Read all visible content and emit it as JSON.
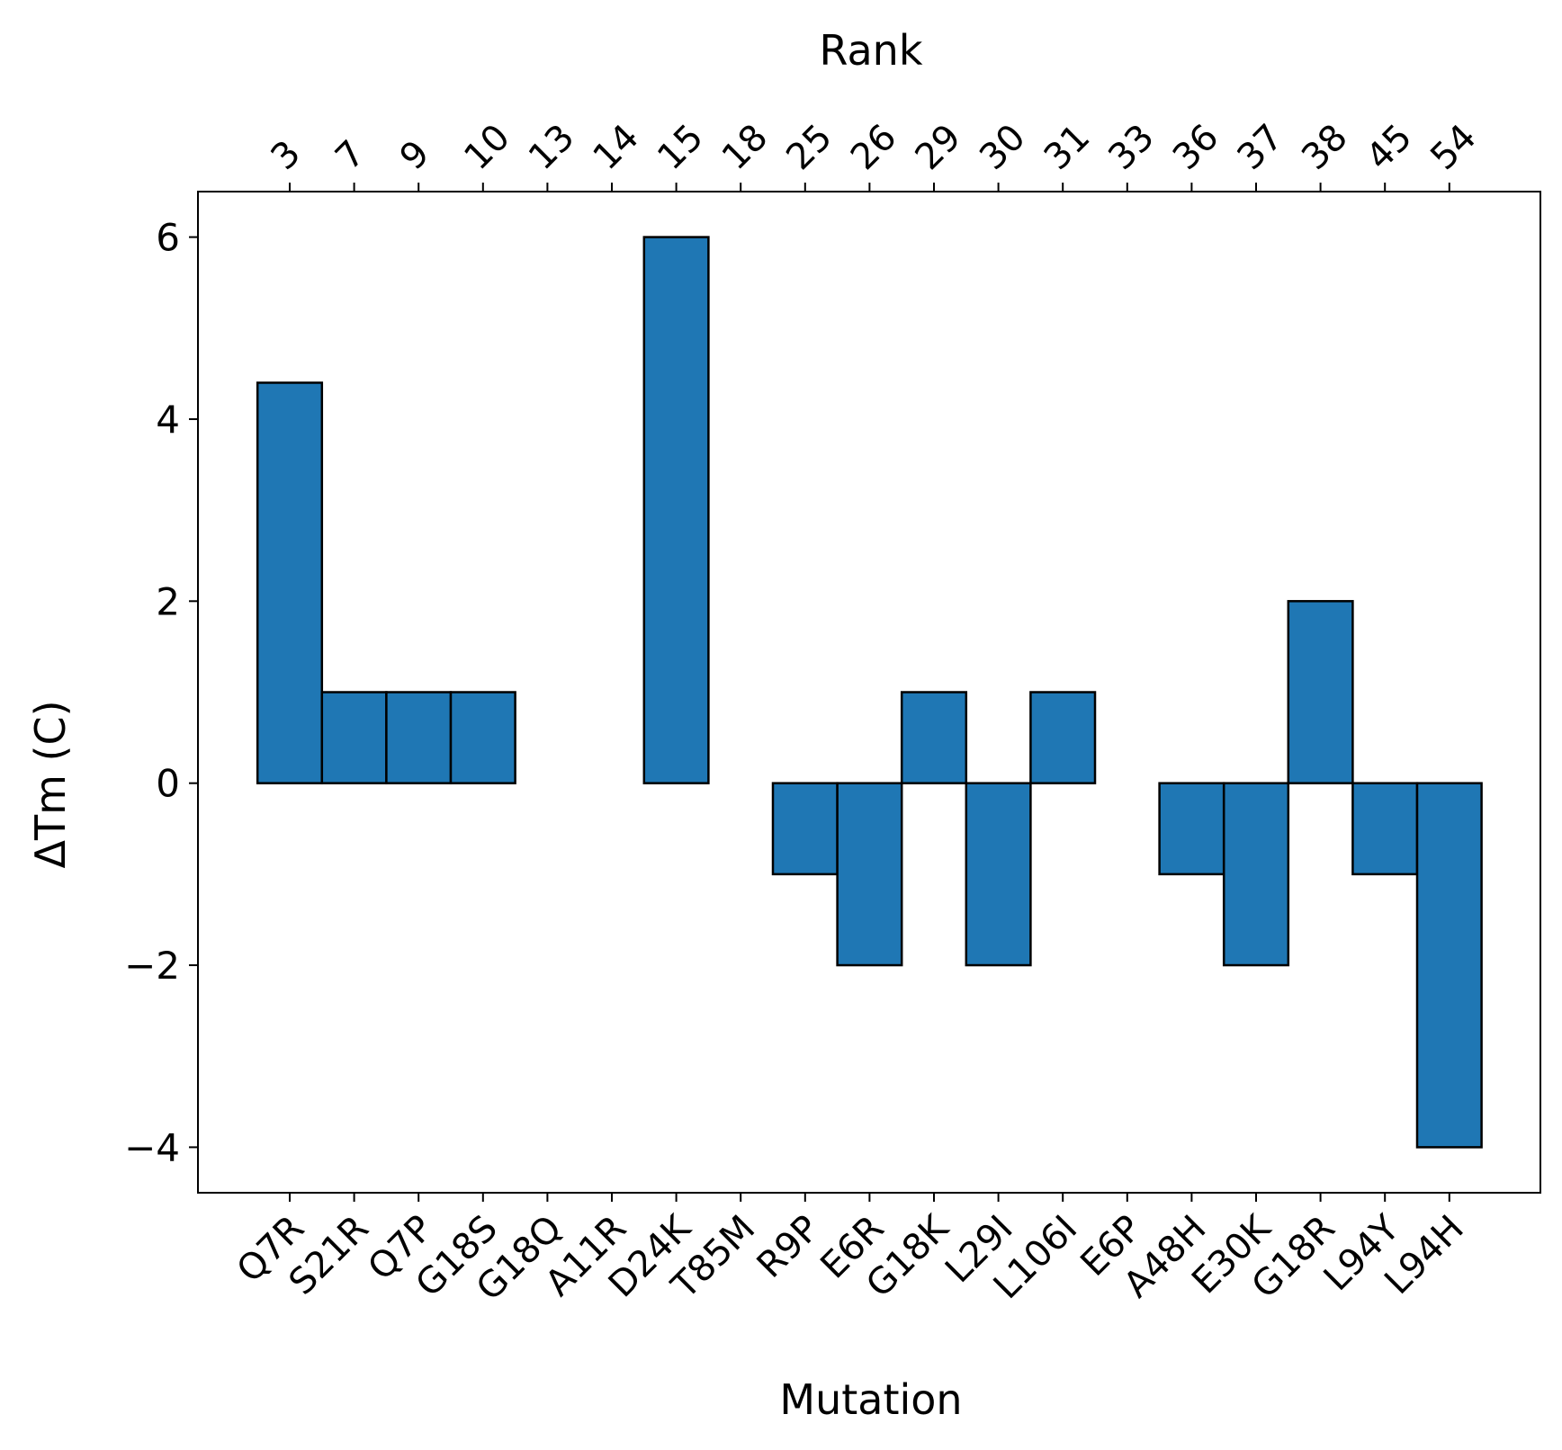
{
  "chart_data": {
    "type": "bar",
    "xlabel": "Mutation",
    "ylabel": "ΔTm (C)",
    "top_xlabel": "Rank",
    "categories": [
      "Q7R",
      "S21R",
      "Q7P",
      "G18S",
      "G18Q",
      "A11R",
      "D24K",
      "T85M",
      "R9P",
      "E6R",
      "G18K",
      "L29I",
      "L106I",
      "E6P",
      "A48H",
      "E30K",
      "G18R",
      "L94Y",
      "L94H"
    ],
    "ranks": [
      "3",
      "7",
      "9",
      "10",
      "13",
      "14",
      "15",
      "18",
      "25",
      "26",
      "29",
      "30",
      "31",
      "33",
      "36",
      "37",
      "38",
      "45",
      "54"
    ],
    "values": [
      4.4,
      1,
      1,
      1,
      0,
      0,
      6,
      0,
      -1,
      -2,
      1,
      -2,
      1,
      0,
      -1,
      -2,
      2,
      -1,
      -4
    ],
    "ylim": [
      -4.5,
      6.5
    ],
    "yticks": [
      -4,
      -2,
      0,
      2,
      4,
      6
    ],
    "ytick_labels": [
      "−4",
      "−2",
      "0",
      "2",
      "4",
      "6"
    ],
    "bar_color": "#1f77b4",
    "edge_color": "#000000",
    "grid": false
  }
}
